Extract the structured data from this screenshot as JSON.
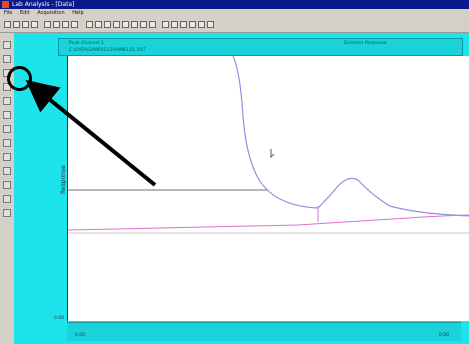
{
  "window": {
    "title": "Lab Analysis - [Data]"
  },
  "menu": [
    "File",
    "Edit",
    "Acquisition",
    "Help"
  ],
  "header": {
    "left_field": "Peak Channel 1",
    "path": "C:\\DATA\\SAMPLE\\CHANNEL01.DAT",
    "right_field": "Detector Response"
  },
  "plot": {
    "ylabel": "Response",
    "y_min_label": "0.00",
    "x_left_label": "0.00",
    "x_right_label": "0.00",
    "colors": {
      "trace_main": "#8f8fe8",
      "trace_baseline": "#e070d0",
      "crosshair": "#6f6f6f",
      "annotation": "#000000"
    }
  }
}
